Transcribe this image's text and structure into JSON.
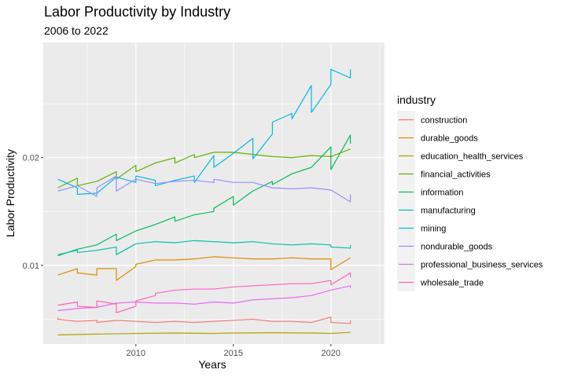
{
  "chart_data": {
    "type": "line",
    "title": "Labor Productivity by Industry",
    "subtitle": "2006 to 2022",
    "xlabel": "Years",
    "ylabel": "Labor Productivity",
    "xlim": [
      2005.25,
      2022.75
    ],
    "ylim": [
      0.0027,
      0.0307
    ],
    "x_ticks": [
      2010,
      2015,
      2020
    ],
    "x_tick_labels": [
      "2010",
      "2015",
      "2020"
    ],
    "y_ticks": [
      0.01,
      0.02
    ],
    "y_tick_labels": [
      "0.01",
      "0.02"
    ],
    "grid": true,
    "legend_position": "right",
    "legend_title": "industry",
    "series": [
      {
        "name": "construction",
        "color": "#F8766D",
        "points": [
          [
            2006,
            0.0052
          ],
          [
            2006,
            0.005
          ],
          [
            2007,
            0.0048
          ],
          [
            2008,
            0.0049
          ],
          [
            2008,
            0.0047
          ],
          [
            2009,
            0.0049
          ],
          [
            2010,
            0.0048
          ],
          [
            2011,
            0.0047
          ],
          [
            2012,
            0.0048
          ],
          [
            2013,
            0.0047
          ],
          [
            2014,
            0.0048
          ],
          [
            2015,
            0.0049
          ],
          [
            2016,
            0.005
          ],
          [
            2017,
            0.0048
          ],
          [
            2018,
            0.0048
          ],
          [
            2019,
            0.0047
          ],
          [
            2020,
            0.0052
          ],
          [
            2020,
            0.0047
          ],
          [
            2021,
            0.0046
          ],
          [
            2021,
            0.0049
          ]
        ]
      },
      {
        "name": "durable_goods",
        "color": "#DB8E00",
        "points": [
          [
            2006,
            0.0091
          ],
          [
            2007,
            0.0097
          ],
          [
            2007,
            0.0093
          ],
          [
            2008,
            0.0091
          ],
          [
            2008,
            0.0097
          ],
          [
            2009,
            0.0097
          ],
          [
            2009,
            0.0086
          ],
          [
            2010,
            0.0099
          ],
          [
            2010,
            0.0101
          ],
          [
            2011,
            0.0105
          ],
          [
            2012,
            0.0105
          ],
          [
            2013,
            0.0106
          ],
          [
            2014,
            0.0108
          ],
          [
            2015,
            0.0107
          ],
          [
            2016,
            0.0106
          ],
          [
            2017,
            0.0106
          ],
          [
            2018,
            0.0107
          ],
          [
            2019,
            0.0106
          ],
          [
            2020,
            0.0106
          ],
          [
            2020,
            0.0096
          ],
          [
            2021,
            0.0107
          ]
        ]
      },
      {
        "name": "education_health_services",
        "color": "#AEA200",
        "points": [
          [
            2006,
            0.00355
          ],
          [
            2008,
            0.00362
          ],
          [
            2010,
            0.00368
          ],
          [
            2012,
            0.00372
          ],
          [
            2014,
            0.00368
          ],
          [
            2015,
            0.00372
          ],
          [
            2017,
            0.00375
          ],
          [
            2019,
            0.00372
          ],
          [
            2020,
            0.00368
          ],
          [
            2021,
            0.00378
          ]
        ]
      },
      {
        "name": "financial_activities",
        "color": "#64B200",
        "points": [
          [
            2006,
            0.0172
          ],
          [
            2007,
            0.0181
          ],
          [
            2007,
            0.0174
          ],
          [
            2008,
            0.0178
          ],
          [
            2009,
            0.0187
          ],
          [
            2009,
            0.018
          ],
          [
            2010,
            0.0193
          ],
          [
            2010,
            0.0187
          ],
          [
            2011,
            0.0195
          ],
          [
            2012,
            0.02
          ],
          [
            2012,
            0.0195
          ],
          [
            2013,
            0.0203
          ],
          [
            2013,
            0.02
          ],
          [
            2014,
            0.0205
          ],
          [
            2015,
            0.0205
          ],
          [
            2016,
            0.0203
          ],
          [
            2017,
            0.0201
          ],
          [
            2018,
            0.02
          ],
          [
            2019,
            0.0202
          ],
          [
            2020,
            0.0201
          ],
          [
            2021,
            0.0208
          ]
        ]
      },
      {
        "name": "information",
        "color": "#00BD5C",
        "points": [
          [
            2006,
            0.0109
          ],
          [
            2007,
            0.0115
          ],
          [
            2008,
            0.0119
          ],
          [
            2009,
            0.0129
          ],
          [
            2009,
            0.0123
          ],
          [
            2010,
            0.0132
          ],
          [
            2011,
            0.0138
          ],
          [
            2012,
            0.0145
          ],
          [
            2012,
            0.0141
          ],
          [
            2013,
            0.0147
          ],
          [
            2014,
            0.015
          ],
          [
            2014,
            0.0153
          ],
          [
            2015,
            0.0164
          ],
          [
            2015,
            0.0156
          ],
          [
            2016,
            0.0169
          ],
          [
            2017,
            0.0178
          ],
          [
            2017,
            0.0175
          ],
          [
            2018,
            0.0185
          ],
          [
            2019,
            0.0191
          ],
          [
            2020,
            0.021
          ],
          [
            2020,
            0.0189
          ],
          [
            2021,
            0.0221
          ],
          [
            2021,
            0.0213
          ]
        ]
      },
      {
        "name": "manufacturing",
        "color": "#00C1A7",
        "points": [
          [
            2006,
            0.011
          ],
          [
            2007,
            0.0114
          ],
          [
            2007,
            0.0112
          ],
          [
            2008,
            0.0114
          ],
          [
            2009,
            0.0117
          ],
          [
            2009,
            0.011
          ],
          [
            2010,
            0.012
          ],
          [
            2011,
            0.0122
          ],
          [
            2012,
            0.0121
          ],
          [
            2013,
            0.0123
          ],
          [
            2014,
            0.0122
          ],
          [
            2015,
            0.0121
          ],
          [
            2016,
            0.0122
          ],
          [
            2017,
            0.012
          ],
          [
            2018,
            0.0119
          ],
          [
            2019,
            0.012
          ],
          [
            2020,
            0.0119
          ],
          [
            2020,
            0.0117
          ],
          [
            2021,
            0.0116
          ],
          [
            2021,
            0.0119
          ]
        ]
      },
      {
        "name": "mining",
        "color": "#00BADE",
        "points": [
          [
            2006,
            0.018
          ],
          [
            2007,
            0.0172
          ],
          [
            2007,
            0.0166
          ],
          [
            2008,
            0.0167
          ],
          [
            2009,
            0.0182
          ],
          [
            2010,
            0.0177
          ],
          [
            2010,
            0.0183
          ],
          [
            2011,
            0.0179
          ],
          [
            2011,
            0.0174
          ],
          [
            2012,
            0.0179
          ],
          [
            2013,
            0.0183
          ],
          [
            2013,
            0.0177
          ],
          [
            2014,
            0.0202
          ],
          [
            2014,
            0.0191
          ],
          [
            2015,
            0.0204
          ],
          [
            2016,
            0.0218
          ],
          [
            2016,
            0.0199
          ],
          [
            2017,
            0.0222
          ],
          [
            2017,
            0.0233
          ],
          [
            2018,
            0.0241
          ],
          [
            2018,
            0.0236
          ],
          [
            2019,
            0.0267
          ],
          [
            2019,
            0.0242
          ],
          [
            2020,
            0.0268
          ],
          [
            2020,
            0.0282
          ],
          [
            2021,
            0.0274
          ],
          [
            2021,
            0.0282
          ]
        ]
      },
      {
        "name": "nondurable_goods",
        "color": "#9590FF",
        "points": [
          [
            2006,
            0.0169
          ],
          [
            2007,
            0.0174
          ],
          [
            2008,
            0.0164
          ],
          [
            2008,
            0.0172
          ],
          [
            2009,
            0.0183
          ],
          [
            2009,
            0.0169
          ],
          [
            2010,
            0.018
          ],
          [
            2011,
            0.0176
          ],
          [
            2012,
            0.0178
          ],
          [
            2013,
            0.0179
          ],
          [
            2014,
            0.0177
          ],
          [
            2014,
            0.018
          ],
          [
            2015,
            0.0177
          ],
          [
            2016,
            0.0177
          ],
          [
            2017,
            0.0172
          ],
          [
            2018,
            0.0171
          ],
          [
            2019,
            0.0172
          ],
          [
            2020,
            0.017
          ],
          [
            2021,
            0.0159
          ],
          [
            2021,
            0.0166
          ]
        ]
      },
      {
        "name": "professional_business_services",
        "color": "#E76BF3",
        "points": [
          [
            2006,
            0.0058
          ],
          [
            2007,
            0.006
          ],
          [
            2008,
            0.0061
          ],
          [
            2009,
            0.0065
          ],
          [
            2010,
            0.0066
          ],
          [
            2011,
            0.0065
          ],
          [
            2012,
            0.0065
          ],
          [
            2013,
            0.0064
          ],
          [
            2014,
            0.0066
          ],
          [
            2015,
            0.0065
          ],
          [
            2016,
            0.0068
          ],
          [
            2017,
            0.0069
          ],
          [
            2018,
            0.007
          ],
          [
            2019,
            0.0072
          ],
          [
            2020,
            0.0077
          ],
          [
            2021,
            0.0081
          ],
          [
            2021,
            0.0079
          ]
        ]
      },
      {
        "name": "wholesale_trade",
        "color": "#FF62BC",
        "points": [
          [
            2006,
            0.0063
          ],
          [
            2007,
            0.0066
          ],
          [
            2007,
            0.0062
          ],
          [
            2008,
            0.0061
          ],
          [
            2008,
            0.0067
          ],
          [
            2009,
            0.0064
          ],
          [
            2009,
            0.0056
          ],
          [
            2010,
            0.0062
          ],
          [
            2010,
            0.0067
          ],
          [
            2011,
            0.0072
          ],
          [
            2011,
            0.0074
          ],
          [
            2012,
            0.0077
          ],
          [
            2013,
            0.0078
          ],
          [
            2014,
            0.0078
          ],
          [
            2015,
            0.008
          ],
          [
            2016,
            0.0081
          ],
          [
            2017,
            0.0082
          ],
          [
            2018,
            0.0083
          ],
          [
            2019,
            0.0083
          ],
          [
            2020,
            0.0086
          ],
          [
            2020,
            0.0082
          ],
          [
            2021,
            0.0093
          ],
          [
            2021,
            0.0089
          ]
        ]
      }
    ]
  }
}
